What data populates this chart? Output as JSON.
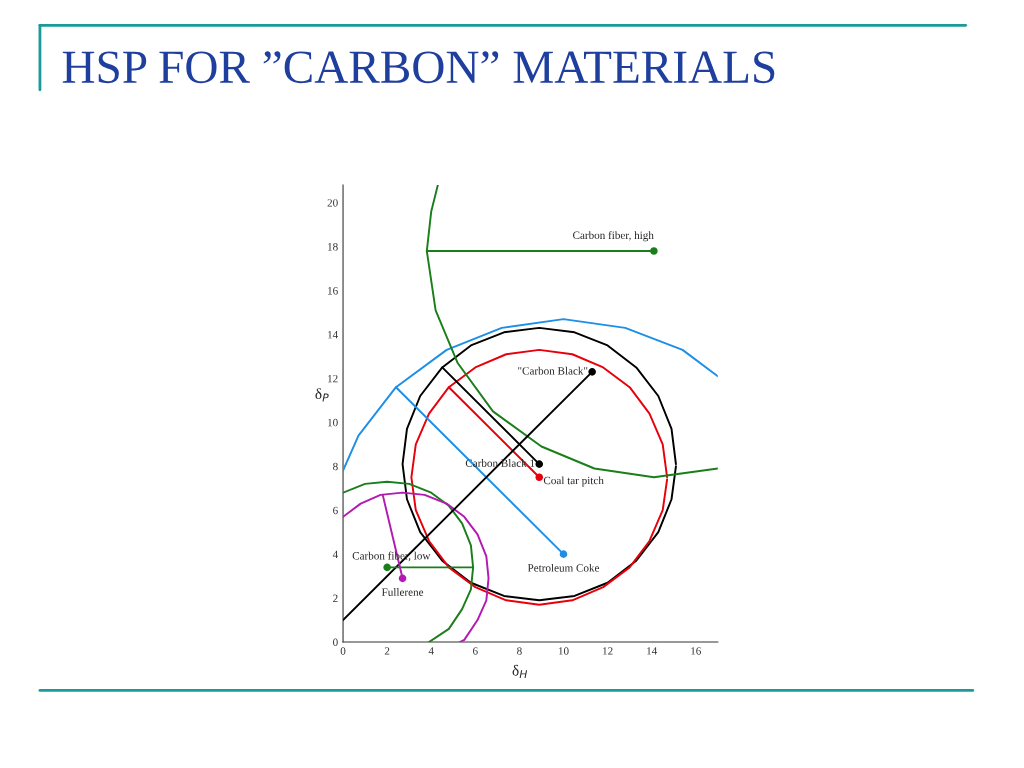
{
  "chart_data": {
    "type": "scatter",
    "title": "HSP FOR ”CARBON” MATERIALS",
    "xlabel": "δ$_{H}$",
    "ylabel": "δ$_{P}$",
    "xlim": [
      0,
      17
    ],
    "ylim": [
      0,
      20.8
    ],
    "xticks": [
      0,
      2,
      4,
      6,
      8,
      10,
      12,
      14,
      16
    ],
    "yticks": [
      0,
      2,
      4,
      6,
      8,
      10,
      12,
      14,
      16,
      18,
      20
    ],
    "grid": false,
    "legend": false,
    "series": [
      {
        "type": "line",
        "color": "#000000",
        "x": [
          15.1,
          14.9,
          14.3,
          13.3,
          12.0,
          10.5,
          8.9,
          7.3,
          5.8,
          4.5,
          3.5,
          2.9,
          2.7,
          2.9,
          3.5,
          4.5,
          5.8,
          7.3,
          8.9,
          10.5,
          12.0,
          13.3,
          14.3,
          14.9,
          15.1
        ],
        "values": [
          8.1,
          9.7,
          11.2,
          12.5,
          13.5,
          14.1,
          14.3,
          14.1,
          13.5,
          12.5,
          11.2,
          9.7,
          8.1,
          6.5,
          5.0,
          3.7,
          2.7,
          2.1,
          1.9,
          2.1,
          2.7,
          3.7,
          5.0,
          6.5,
          8.0
        ]
      },
      {
        "type": "line",
        "color": "#e8000b",
        "x": [
          14.7,
          14.5,
          13.9,
          13.0,
          11.8,
          10.4,
          8.9,
          7.4,
          6.0,
          4.8,
          3.9,
          3.3,
          3.1,
          3.3,
          3.9,
          4.8,
          6.0,
          7.4,
          8.9,
          10.4,
          11.8,
          13.0,
          13.9,
          14.5,
          14.7
        ],
        "values": [
          7.5,
          9.0,
          10.4,
          11.6,
          12.5,
          13.1,
          13.3,
          13.1,
          12.5,
          11.6,
          10.4,
          9.0,
          7.5,
          6.0,
          4.6,
          3.4,
          2.5,
          1.9,
          1.7,
          1.9,
          2.5,
          3.4,
          4.6,
          6.0,
          7.4
        ]
      },
      {
        "type": "line",
        "color": "#1e8fe6",
        "x": [
          0.0,
          0.7,
          2.4,
          4.7,
          7.2,
          10.0,
          12.8,
          15.4,
          17.0
        ],
        "values": [
          7.8,
          9.4,
          11.6,
          13.3,
          14.3,
          14.7,
          14.3,
          13.3,
          12.1
        ]
      },
      {
        "type": "line",
        "color": "#1a7f1a",
        "x": [
          4.3,
          4.0,
          3.8,
          4.2,
          5.2,
          6.8,
          9.0,
          11.4,
          14.1,
          17.0
        ],
        "values": [
          20.8,
          19.6,
          17.8,
          15.1,
          12.7,
          10.5,
          8.9,
          7.9,
          7.5,
          7.9
        ]
      },
      {
        "type": "line",
        "color": "#1a7f1a",
        "x": [
          0.0,
          1.0,
          2.0,
          3.0,
          4.0,
          4.8,
          5.4,
          5.8,
          5.9,
          5.8,
          5.4,
          4.8,
          3.9
        ],
        "values": [
          6.8,
          7.2,
          7.3,
          7.2,
          6.8,
          6.2,
          5.4,
          4.4,
          3.4,
          2.4,
          1.5,
          0.6,
          0.0
        ]
      },
      {
        "type": "line",
        "color": "#b21ab2",
        "x": [
          0.0,
          0.8,
          1.7,
          2.7,
          3.7,
          4.7,
          5.5,
          6.1,
          6.5,
          6.6,
          6.5,
          6.1,
          5.5,
          5.3
        ],
        "values": [
          5.7,
          6.3,
          6.7,
          6.8,
          6.7,
          6.3,
          5.7,
          4.9,
          3.9,
          2.9,
          1.9,
          1.0,
          0.1,
          0.0
        ]
      },
      {
        "type": "line",
        "color": "#1a7f1a",
        "x": [
          14.1,
          3.8
        ],
        "values": [
          17.8,
          17.8
        ]
      },
      {
        "type": "line",
        "color": "#000000",
        "x": [
          8.9,
          4.5
        ],
        "values": [
          8.1,
          12.5
        ]
      },
      {
        "type": "line",
        "color": "#e8000b",
        "x": [
          8.9,
          4.8
        ],
        "values": [
          7.5,
          11.6
        ]
      },
      {
        "type": "line",
        "color": "#1e8fe6",
        "x": [
          10.0,
          2.4
        ],
        "values": [
          4.0,
          11.6
        ]
      },
      {
        "type": "line",
        "color": "#000000",
        "x": [
          11.3,
          0.0
        ],
        "values": [
          12.3,
          1.0
        ]
      },
      {
        "type": "line",
        "color": "#1a7f1a",
        "x": [
          2.0,
          5.9
        ],
        "values": [
          3.4,
          3.4
        ]
      },
      {
        "type": "line",
        "color": "#b21ab2",
        "x": [
          2.7,
          1.8
        ],
        "values": [
          2.9,
          6.7
        ]
      },
      {
        "name": "Carbon fiber, high",
        "marker": "circle",
        "color": "#1a7f1a",
        "x": [
          14.1
        ],
        "values": [
          17.8
        ]
      },
      {
        "name": "\"Carbon Black\"",
        "marker": "circle",
        "color": "#000000",
        "x": [
          11.3
        ],
        "values": [
          12.3
        ]
      },
      {
        "name": "Carbon Black 1",
        "marker": "circle",
        "color": "#000000",
        "x": [
          8.9
        ],
        "values": [
          8.1
        ]
      },
      {
        "name": "Coal tar pitch",
        "marker": "circle",
        "color": "#e8000b",
        "x": [
          8.9
        ],
        "values": [
          7.5
        ]
      },
      {
        "name": "Petroleum Coke",
        "marker": "circle",
        "color": "#1e8fe6",
        "x": [
          10.0
        ],
        "values": [
          4.0
        ]
      },
      {
        "name": "Carbon fiber, low",
        "marker": "circle",
        "color": "#1a7f1a",
        "x": [
          2.0
        ],
        "values": [
          3.4
        ]
      },
      {
        "name": "Fullerene",
        "marker": "circle",
        "color": "#b21ab2",
        "x": [
          2.7
        ],
        "values": [
          2.9
        ]
      }
    ]
  }
}
